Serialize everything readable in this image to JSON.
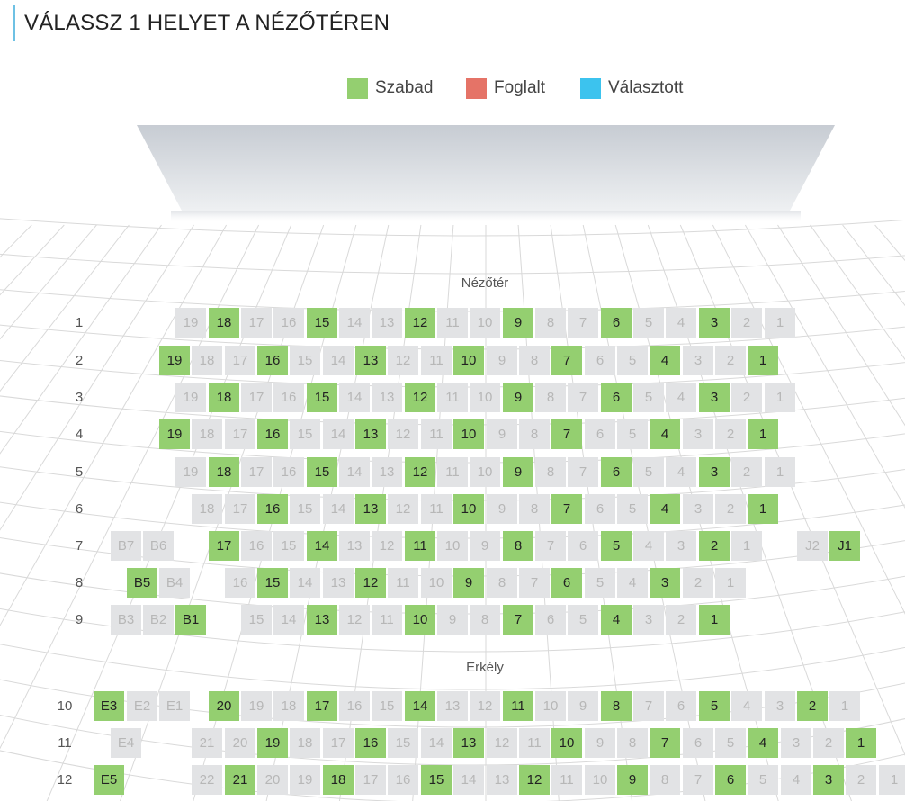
{
  "page": {
    "title": "VÁLASSZ 1 HELYET A NÉZŐTÉREN"
  },
  "legend": [
    {
      "label": "Szabad",
      "color": "#94cf70",
      "icon": "free-swatch"
    },
    {
      "label": "Foglalt",
      "color": "#e57367",
      "icon": "taken-swatch"
    },
    {
      "label": "Választott",
      "color": "#3cc3ee",
      "icon": "selected-swatch"
    }
  ],
  "sections": {
    "nezoter": "Nézőtér",
    "erkely": "Erkély"
  },
  "rows": [
    {
      "label": "1",
      "seats": [
        {
          "n": "19",
          "s": "g"
        },
        {
          "n": "18",
          "s": "f"
        },
        {
          "n": "17",
          "s": "g"
        },
        {
          "n": "16",
          "s": "g"
        },
        {
          "n": "15",
          "s": "f"
        },
        {
          "n": "14",
          "s": "g"
        },
        {
          "n": "13",
          "s": "g"
        },
        {
          "n": "12",
          "s": "f"
        },
        {
          "n": "11",
          "s": "g"
        },
        {
          "n": "10",
          "s": "g"
        },
        {
          "n": "9",
          "s": "f"
        },
        {
          "n": "8",
          "s": "g"
        },
        {
          "n": "7",
          "s": "g"
        },
        {
          "n": "6",
          "s": "f"
        },
        {
          "n": "5",
          "s": "g"
        },
        {
          "n": "4",
          "s": "g"
        },
        {
          "n": "3",
          "s": "f"
        },
        {
          "n": "2",
          "s": "g"
        },
        {
          "n": "1",
          "s": "g"
        }
      ]
    },
    {
      "label": "2",
      "seats": [
        {
          "n": "19",
          "s": "f"
        },
        {
          "n": "18",
          "s": "g"
        },
        {
          "n": "17",
          "s": "g"
        },
        {
          "n": "16",
          "s": "f"
        },
        {
          "n": "15",
          "s": "g"
        },
        {
          "n": "14",
          "s": "g"
        },
        {
          "n": "13",
          "s": "f"
        },
        {
          "n": "12",
          "s": "g"
        },
        {
          "n": "11",
          "s": "g"
        },
        {
          "n": "10",
          "s": "f"
        },
        {
          "n": "9",
          "s": "g"
        },
        {
          "n": "8",
          "s": "g"
        },
        {
          "n": "7",
          "s": "f"
        },
        {
          "n": "6",
          "s": "g"
        },
        {
          "n": "5",
          "s": "g"
        },
        {
          "n": "4",
          "s": "f"
        },
        {
          "n": "3",
          "s": "g"
        },
        {
          "n": "2",
          "s": "g"
        },
        {
          "n": "1",
          "s": "f"
        }
      ]
    },
    {
      "label": "3",
      "seats": [
        {
          "n": "19",
          "s": "g"
        },
        {
          "n": "18",
          "s": "f"
        },
        {
          "n": "17",
          "s": "g"
        },
        {
          "n": "16",
          "s": "g"
        },
        {
          "n": "15",
          "s": "f"
        },
        {
          "n": "14",
          "s": "g"
        },
        {
          "n": "13",
          "s": "g"
        },
        {
          "n": "12",
          "s": "f"
        },
        {
          "n": "11",
          "s": "g"
        },
        {
          "n": "10",
          "s": "g"
        },
        {
          "n": "9",
          "s": "f"
        },
        {
          "n": "8",
          "s": "g"
        },
        {
          "n": "7",
          "s": "g"
        },
        {
          "n": "6",
          "s": "f"
        },
        {
          "n": "5",
          "s": "g"
        },
        {
          "n": "4",
          "s": "g"
        },
        {
          "n": "3",
          "s": "f"
        },
        {
          "n": "2",
          "s": "g"
        },
        {
          "n": "1",
          "s": "g"
        }
      ]
    },
    {
      "label": "4",
      "seats": [
        {
          "n": "19",
          "s": "f"
        },
        {
          "n": "18",
          "s": "g"
        },
        {
          "n": "17",
          "s": "g"
        },
        {
          "n": "16",
          "s": "f"
        },
        {
          "n": "15",
          "s": "g"
        },
        {
          "n": "14",
          "s": "g"
        },
        {
          "n": "13",
          "s": "f"
        },
        {
          "n": "12",
          "s": "g"
        },
        {
          "n": "11",
          "s": "g"
        },
        {
          "n": "10",
          "s": "f"
        },
        {
          "n": "9",
          "s": "g"
        },
        {
          "n": "8",
          "s": "g"
        },
        {
          "n": "7",
          "s": "f"
        },
        {
          "n": "6",
          "s": "g"
        },
        {
          "n": "5",
          "s": "g"
        },
        {
          "n": "4",
          "s": "f"
        },
        {
          "n": "3",
          "s": "g"
        },
        {
          "n": "2",
          "s": "g"
        },
        {
          "n": "1",
          "s": "f"
        }
      ]
    },
    {
      "label": "5",
      "seats": [
        {
          "n": "19",
          "s": "g"
        },
        {
          "n": "18",
          "s": "f"
        },
        {
          "n": "17",
          "s": "g"
        },
        {
          "n": "16",
          "s": "g"
        },
        {
          "n": "15",
          "s": "f"
        },
        {
          "n": "14",
          "s": "g"
        },
        {
          "n": "13",
          "s": "g"
        },
        {
          "n": "12",
          "s": "f"
        },
        {
          "n": "11",
          "s": "g"
        },
        {
          "n": "10",
          "s": "g"
        },
        {
          "n": "9",
          "s": "f"
        },
        {
          "n": "8",
          "s": "g"
        },
        {
          "n": "7",
          "s": "g"
        },
        {
          "n": "6",
          "s": "f"
        },
        {
          "n": "5",
          "s": "g"
        },
        {
          "n": "4",
          "s": "g"
        },
        {
          "n": "3",
          "s": "f"
        },
        {
          "n": "2",
          "s": "g"
        },
        {
          "n": "1",
          "s": "g"
        }
      ]
    },
    {
      "label": "6",
      "seats": [
        {
          "n": "18",
          "s": "g"
        },
        {
          "n": "17",
          "s": "g"
        },
        {
          "n": "16",
          "s": "f"
        },
        {
          "n": "15",
          "s": "g"
        },
        {
          "n": "14",
          "s": "g"
        },
        {
          "n": "13",
          "s": "f"
        },
        {
          "n": "12",
          "s": "g"
        },
        {
          "n": "11",
          "s": "g"
        },
        {
          "n": "10",
          "s": "f"
        },
        {
          "n": "9",
          "s": "g"
        },
        {
          "n": "8",
          "s": "g"
        },
        {
          "n": "7",
          "s": "f"
        },
        {
          "n": "6",
          "s": "g"
        },
        {
          "n": "5",
          "s": "g"
        },
        {
          "n": "4",
          "s": "f"
        },
        {
          "n": "3",
          "s": "g"
        },
        {
          "n": "2",
          "s": "g"
        },
        {
          "n": "1",
          "s": "f"
        }
      ]
    },
    {
      "label": "7",
      "seats": [
        {
          "n": "B7",
          "s": "g"
        },
        {
          "n": "B6",
          "s": "g"
        },
        {
          "n": "17",
          "s": "f"
        },
        {
          "n": "16",
          "s": "g"
        },
        {
          "n": "15",
          "s": "g"
        },
        {
          "n": "14",
          "s": "f"
        },
        {
          "n": "13",
          "s": "g"
        },
        {
          "n": "12",
          "s": "g"
        },
        {
          "n": "11",
          "s": "f"
        },
        {
          "n": "10",
          "s": "g"
        },
        {
          "n": "9",
          "s": "g"
        },
        {
          "n": "8",
          "s": "f"
        },
        {
          "n": "7",
          "s": "g"
        },
        {
          "n": "6",
          "s": "g"
        },
        {
          "n": "5",
          "s": "f"
        },
        {
          "n": "4",
          "s": "g"
        },
        {
          "n": "3",
          "s": "g"
        },
        {
          "n": "2",
          "s": "f"
        },
        {
          "n": "1",
          "s": "g"
        },
        {
          "n": "J2",
          "s": "g"
        },
        {
          "n": "J1",
          "s": "f"
        }
      ]
    },
    {
      "label": "8",
      "seats": [
        {
          "n": "B5",
          "s": "f"
        },
        {
          "n": "B4",
          "s": "g"
        },
        {
          "n": "16",
          "s": "g"
        },
        {
          "n": "15",
          "s": "f"
        },
        {
          "n": "14",
          "s": "g"
        },
        {
          "n": "13",
          "s": "g"
        },
        {
          "n": "12",
          "s": "f"
        },
        {
          "n": "11",
          "s": "g"
        },
        {
          "n": "10",
          "s": "g"
        },
        {
          "n": "9",
          "s": "f"
        },
        {
          "n": "8",
          "s": "g"
        },
        {
          "n": "7",
          "s": "g"
        },
        {
          "n": "6",
          "s": "f"
        },
        {
          "n": "5",
          "s": "g"
        },
        {
          "n": "4",
          "s": "g"
        },
        {
          "n": "3",
          "s": "f"
        },
        {
          "n": "2",
          "s": "g"
        },
        {
          "n": "1",
          "s": "g"
        }
      ]
    },
    {
      "label": "9",
      "seats": [
        {
          "n": "B3",
          "s": "g"
        },
        {
          "n": "B2",
          "s": "g"
        },
        {
          "n": "B1",
          "s": "f"
        },
        {
          "n": "15",
          "s": "g"
        },
        {
          "n": "14",
          "s": "g"
        },
        {
          "n": "13",
          "s": "f"
        },
        {
          "n": "12",
          "s": "g"
        },
        {
          "n": "11",
          "s": "g"
        },
        {
          "n": "10",
          "s": "f"
        },
        {
          "n": "9",
          "s": "g"
        },
        {
          "n": "8",
          "s": "g"
        },
        {
          "n": "7",
          "s": "f"
        },
        {
          "n": "6",
          "s": "g"
        },
        {
          "n": "5",
          "s": "g"
        },
        {
          "n": "4",
          "s": "f"
        },
        {
          "n": "3",
          "s": "g"
        },
        {
          "n": "2",
          "s": "g"
        },
        {
          "n": "1",
          "s": "f"
        }
      ]
    },
    {
      "label": "10",
      "seats": [
        {
          "n": "E3",
          "s": "f"
        },
        {
          "n": "E2",
          "s": "g"
        },
        {
          "n": "E1",
          "s": "g"
        },
        {
          "n": "20",
          "s": "f"
        },
        {
          "n": "19",
          "s": "g"
        },
        {
          "n": "18",
          "s": "g"
        },
        {
          "n": "17",
          "s": "f"
        },
        {
          "n": "16",
          "s": "g"
        },
        {
          "n": "15",
          "s": "g"
        },
        {
          "n": "14",
          "s": "f"
        },
        {
          "n": "13",
          "s": "g"
        },
        {
          "n": "12",
          "s": "g"
        },
        {
          "n": "11",
          "s": "f"
        },
        {
          "n": "10",
          "s": "g"
        },
        {
          "n": "9",
          "s": "g"
        },
        {
          "n": "8",
          "s": "f"
        },
        {
          "n": "7",
          "s": "g"
        },
        {
          "n": "6",
          "s": "g"
        },
        {
          "n": "5",
          "s": "f"
        },
        {
          "n": "4",
          "s": "g"
        },
        {
          "n": "3",
          "s": "g"
        },
        {
          "n": "2",
          "s": "f"
        },
        {
          "n": "1",
          "s": "g"
        }
      ]
    },
    {
      "label": "11",
      "seats": [
        {
          "n": "E4",
          "s": "g"
        },
        {
          "n": "21",
          "s": "g"
        },
        {
          "n": "20",
          "s": "g"
        },
        {
          "n": "19",
          "s": "f"
        },
        {
          "n": "18",
          "s": "g"
        },
        {
          "n": "17",
          "s": "g"
        },
        {
          "n": "16",
          "s": "f"
        },
        {
          "n": "15",
          "s": "g"
        },
        {
          "n": "14",
          "s": "g"
        },
        {
          "n": "13",
          "s": "f"
        },
        {
          "n": "12",
          "s": "g"
        },
        {
          "n": "11",
          "s": "g"
        },
        {
          "n": "10",
          "s": "f"
        },
        {
          "n": "9",
          "s": "g"
        },
        {
          "n": "8",
          "s": "g"
        },
        {
          "n": "7",
          "s": "f"
        },
        {
          "n": "6",
          "s": "g"
        },
        {
          "n": "5",
          "s": "g"
        },
        {
          "n": "4",
          "s": "f"
        },
        {
          "n": "3",
          "s": "g"
        },
        {
          "n": "2",
          "s": "g"
        },
        {
          "n": "1",
          "s": "f"
        }
      ]
    },
    {
      "label": "12",
      "seats": [
        {
          "n": "E5",
          "s": "f"
        },
        {
          "n": "22",
          "s": "g"
        },
        {
          "n": "21",
          "s": "f"
        },
        {
          "n": "20",
          "s": "g"
        },
        {
          "n": "19",
          "s": "g"
        },
        {
          "n": "18",
          "s": "f"
        },
        {
          "n": "17",
          "s": "g"
        },
        {
          "n": "16",
          "s": "g"
        },
        {
          "n": "15",
          "s": "f"
        },
        {
          "n": "14",
          "s": "g"
        },
        {
          "n": "13",
          "s": "g"
        },
        {
          "n": "12",
          "s": "f"
        },
        {
          "n": "11",
          "s": "g"
        },
        {
          "n": "10",
          "s": "g"
        },
        {
          "n": "9",
          "s": "f"
        },
        {
          "n": "8",
          "s": "g"
        },
        {
          "n": "7",
          "s": "g"
        },
        {
          "n": "6",
          "s": "f"
        },
        {
          "n": "5",
          "s": "g"
        },
        {
          "n": "4",
          "s": "g"
        },
        {
          "n": "3",
          "s": "f"
        },
        {
          "n": "2",
          "s": "g"
        },
        {
          "n": "1",
          "s": "g"
        }
      ]
    }
  ]
}
